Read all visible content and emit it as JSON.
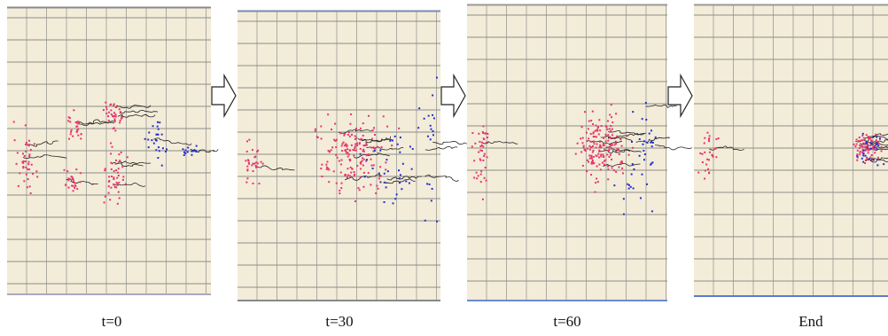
{
  "panels": [
    {
      "caption": "t=0"
    },
    {
      "caption": "t=30"
    },
    {
      "caption": "t=60"
    },
    {
      "caption": "End"
    }
  ]
}
